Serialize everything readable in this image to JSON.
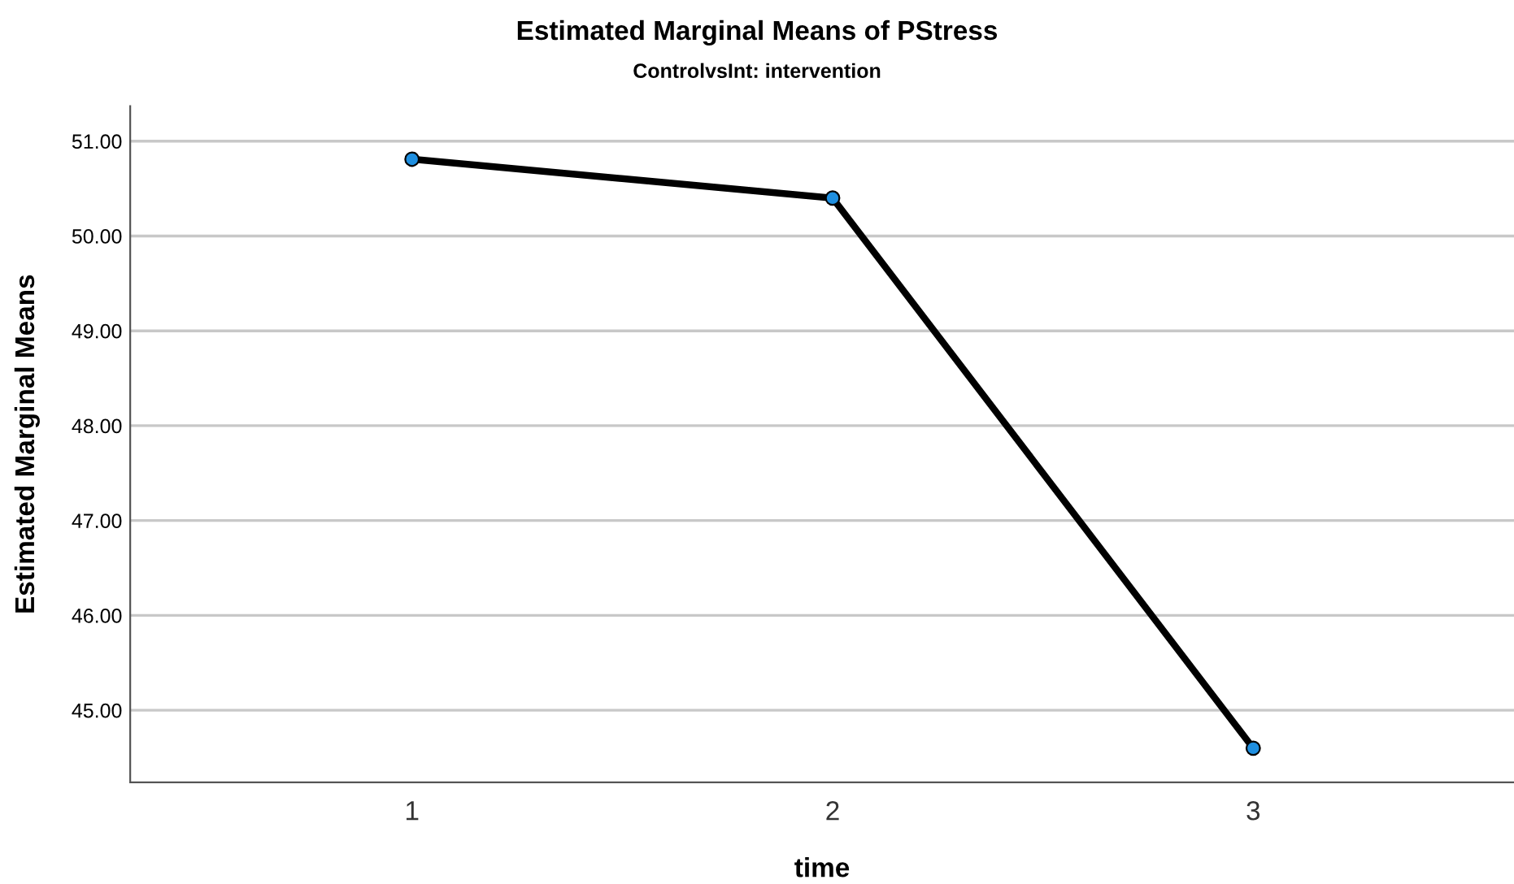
{
  "chart_data": {
    "type": "line",
    "title": "Estimated Marginal Means of PStress",
    "subtitle": "ControlvsInt: intervention",
    "xlabel": "time",
    "ylabel": "Estimated Marginal Means",
    "categories": [
      "1",
      "2",
      "3"
    ],
    "series": [
      {
        "color": "#000000",
        "values": [
          50.81,
          50.4,
          44.6
        ]
      }
    ],
    "ylim": [
      44.24,
      51.37
    ],
    "yticks": [
      {
        "value": 45,
        "label": "45.00"
      },
      {
        "value": 46,
        "label": "46.00"
      },
      {
        "value": 47,
        "label": "47.00"
      },
      {
        "value": 48,
        "label": "48.00"
      },
      {
        "value": 49,
        "label": "49.00"
      },
      {
        "value": 50,
        "label": "50.00"
      },
      {
        "value": 51,
        "label": "51.00"
      }
    ],
    "grid": "y",
    "marker": "circle",
    "line_style": "solid",
    "legend": false
  }
}
